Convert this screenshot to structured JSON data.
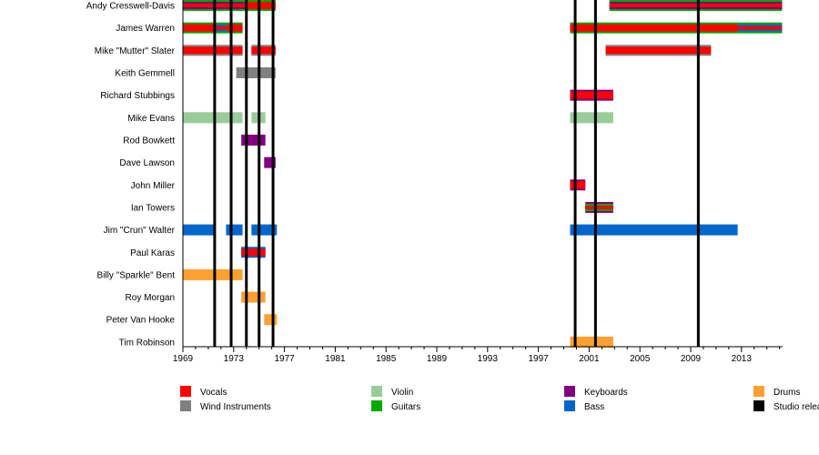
{
  "chart_data": {
    "type": "timeline",
    "xlim": [
      1969,
      2016.2
    ],
    "tick_labels": [
      "1969",
      "1973",
      "1977",
      "1981",
      "1985",
      "1989",
      "1993",
      "1997",
      "2001",
      "2005",
      "2009",
      "2013"
    ],
    "colors": {
      "Vocals": "#ff0000",
      "Wind Instruments": "#808080",
      "Violin": "#99cc99",
      "Guitars": "#00aa00",
      "Keyboards": "#800080",
      "Bass": "#0066cc",
      "Drums": "#ffa030",
      "Studio release": "#000000"
    },
    "legend": [
      [
        "Vocals",
        "Wind Instruments"
      ],
      [
        "Violin",
        "Guitars"
      ],
      [
        "Keyboards",
        "Bass"
      ],
      [
        "Drums",
        "Studio release"
      ]
    ],
    "studio_releases": [
      1971.5,
      1972.8,
      1974.0,
      1975.0,
      1976.1,
      1999.9,
      2001.5,
      2009.6
    ],
    "members": [
      {
        "name": "Andy Cresswell-Davis",
        "bars": [
          {
            "from": 1969,
            "to": 1973.9,
            "roles": [
              "Guitars",
              "Keyboards",
              "Vocals"
            ]
          },
          {
            "from": 1973.9,
            "to": 1976.3,
            "roles": [
              "Guitars",
              "Vocals"
            ]
          },
          {
            "from": 2002.6,
            "to": 2016.2,
            "roles": [
              "Guitars",
              "Keyboards",
              "Vocals"
            ]
          }
        ]
      },
      {
        "name": "James Warren",
        "bars": [
          {
            "from": 1969,
            "to": 1971.4,
            "roles": [
              "Guitars",
              "Vocals"
            ]
          },
          {
            "from": 1971.4,
            "to": 1972.5,
            "roles": [
              "Guitars",
              "Bass",
              "Vocals"
            ]
          },
          {
            "from": 1972.5,
            "to": 1973.7,
            "roles": [
              "Guitars",
              "Vocals"
            ]
          },
          {
            "from": 1999.5,
            "to": 2012.7,
            "roles": [
              "Guitars",
              "Vocals"
            ]
          },
          {
            "from": 2012.7,
            "to": 2016.2,
            "roles": [
              "Guitars",
              "Bass",
              "Vocals"
            ]
          }
        ]
      },
      {
        "name": "Mike \"Mutter\" Slater",
        "bars": [
          {
            "from": 1969,
            "to": 1973.7,
            "roles": [
              "Wind Instruments",
              "Vocals"
            ]
          },
          {
            "from": 1974.4,
            "to": 1976.3,
            "roles": [
              "Wind Instruments",
              "Vocals"
            ]
          },
          {
            "from": 2002.3,
            "to": 2010.6,
            "roles": [
              "Wind Instruments",
              "Vocals"
            ]
          }
        ]
      },
      {
        "name": "Keith Gemmell",
        "bars": [
          {
            "from": 1973.2,
            "to": 1976.3,
            "roles": [
              "Wind Instruments"
            ]
          }
        ]
      },
      {
        "name": "Richard Stubbings",
        "bars": [
          {
            "from": 1999.5,
            "to": 2002.9,
            "roles": [
              "Keyboards",
              "Vocals"
            ]
          }
        ]
      },
      {
        "name": "Mike Evans",
        "bars": [
          {
            "from": 1969,
            "to": 1973.7,
            "roles": [
              "Violin"
            ]
          },
          {
            "from": 1974.4,
            "to": 1975.5,
            "roles": [
              "Violin"
            ]
          },
          {
            "from": 1999.5,
            "to": 2002.9,
            "roles": [
              "Violin"
            ]
          }
        ]
      },
      {
        "name": "Rod Bowkett",
        "bars": [
          {
            "from": 1973.6,
            "to": 1975.5,
            "roles": [
              "Keyboards"
            ]
          }
        ]
      },
      {
        "name": "Dave Lawson",
        "bars": [
          {
            "from": 1975.4,
            "to": 1976.3,
            "roles": [
              "Keyboards"
            ]
          }
        ]
      },
      {
        "name": "John Miller",
        "bars": [
          {
            "from": 1999.5,
            "to": 2000.7,
            "roles": [
              "Keyboards",
              "Vocals"
            ]
          }
        ]
      },
      {
        "name": "Ian Towers",
        "bars": [
          {
            "from": 2000.7,
            "to": 2002.9,
            "roles": [
              "Keyboards",
              "Guitars",
              "Vocals"
            ]
          }
        ]
      },
      {
        "name": "Jim \"Crun\" Walter",
        "bars": [
          {
            "from": 1969,
            "to": 1971.5,
            "roles": [
              "Bass"
            ]
          },
          {
            "from": 1972.4,
            "to": 1973.7,
            "roles": [
              "Bass"
            ]
          },
          {
            "from": 1974.4,
            "to": 1976.4,
            "roles": [
              "Bass"
            ]
          },
          {
            "from": 1999.5,
            "to": 2012.7,
            "roles": [
              "Bass"
            ]
          }
        ]
      },
      {
        "name": "Paul Karas",
        "bars": [
          {
            "from": 1973.6,
            "to": 1975.5,
            "roles": [
              "Bass",
              "Vocals"
            ]
          }
        ]
      },
      {
        "name": "Billy \"Sparkle\" Bent",
        "bars": [
          {
            "from": 1969,
            "to": 1973.7,
            "roles": [
              "Drums"
            ]
          }
        ]
      },
      {
        "name": "Roy Morgan",
        "bars": [
          {
            "from": 1973.6,
            "to": 1975.5,
            "roles": [
              "Drums"
            ]
          }
        ]
      },
      {
        "name": "Peter Van Hooke",
        "bars": [
          {
            "from": 1975.4,
            "to": 1976.4,
            "roles": [
              "Drums"
            ]
          }
        ]
      },
      {
        "name": "Tim Robinson",
        "bars": [
          {
            "from": 1999.5,
            "to": 2002.9,
            "roles": [
              "Drums"
            ]
          }
        ]
      }
    ]
  }
}
